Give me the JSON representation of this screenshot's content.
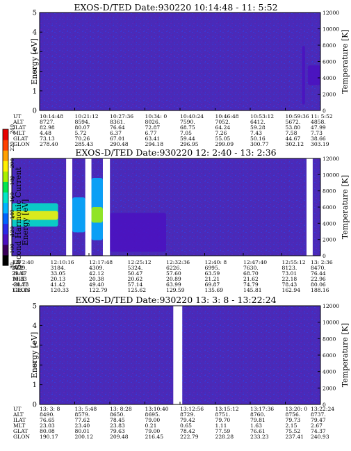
{
  "chart_data": [
    {
      "type": "heatmap",
      "title": "EXOS-D/TED   Date:930220  10:14:48 - 11: 5:52",
      "ylabel": "Energy [eV]",
      "y2label": "Temperature [K]",
      "ylim": [
        0,
        5
      ],
      "yticks": [
        "0",
        "1",
        "2",
        "3",
        "4",
        "5"
      ],
      "y2lim": [
        0,
        12000
      ],
      "y2ticks": [
        "0",
        "2000",
        "4000",
        "6000",
        "8000",
        "10000",
        "12000"
      ],
      "row_labels": [
        "UT",
        "ALT",
        "ILAT",
        "MLT",
        "GLAT",
        "GLON"
      ],
      "columns": [
        [
          "10:14:48",
          "8727.",
          "82.98",
          "4.48",
          "73.13",
          "278.40"
        ],
        [
          "10:21:12",
          "8594.",
          "80.07",
          "5.72",
          "70.26",
          "285.43"
        ],
        [
          "10:27:36",
          "8361.",
          "76.64",
          "6.37",
          "67.01",
          "290.48"
        ],
        [
          "10:34: 0",
          "8026.",
          "72.87",
          "6.77",
          "63.41",
          "294.18"
        ],
        [
          "10:40:24",
          "7590.",
          "68.75",
          "7.05",
          "59.44",
          "296.95"
        ],
        [
          "10:46:48",
          "7052.",
          "64.24",
          "7.26",
          "55.05",
          "299.09"
        ],
        [
          "10:53:12",
          "6412.",
          "59.28",
          "7.43",
          "50.16",
          "300.77"
        ],
        [
          "10:59:36",
          "5672.",
          "53.80",
          "7.58",
          "44.67",
          "302.12"
        ],
        [
          "11: 5:52",
          "4858.",
          "47.99",
          "7.73",
          "38.66",
          "303.19"
        ]
      ],
      "gaps": [],
      "features": [
        {
          "x": [
            0.955,
            1.0
          ],
          "y": [
            1.3,
            2.3
          ],
          "level": 110
        },
        {
          "x": [
            0.935,
            0.945
          ],
          "y": [
            0.3,
            3.3
          ],
          "level": 105
        }
      ]
    },
    {
      "type": "heatmap",
      "title": "EXOS-D/TED   Date:930220  12: 2:40 - 13: 2:36",
      "ylabel": "Energy [eV]",
      "y2label": "Temperature [K]",
      "ylim": [
        0,
        5
      ],
      "yticks": [
        "0",
        "1",
        "2",
        "3",
        "4",
        "5"
      ],
      "y2lim": [
        0,
        12000
      ],
      "y2ticks": [
        "0",
        "2000",
        "4000",
        "6000",
        "8000",
        "10000",
        "12000"
      ],
      "row_labels": [
        "UT",
        "ALT",
        "ILAT",
        "MLT",
        "GLAT",
        "GLON"
      ],
      "columns": [
        [
          "12: 2:40",
          "2029.",
          "29.47",
          "19.83",
          "-20.73",
          "118.13"
        ],
        [
          "12:10:16",
          "3184.",
          "33.05",
          "20.13",
          "41.42",
          "120.33"
        ],
        [
          "12:17:48",
          "4309.",
          "42.12",
          "20.38",
          "49.40",
          "122.79"
        ],
        [
          "12:25:12",
          "5324.",
          "50.47",
          "20.62",
          "57.14",
          "125.62"
        ],
        [
          "12:32:36",
          "6226.",
          "57.60",
          "20.89",
          "63.99",
          "129.59"
        ],
        [
          "12:40: 8",
          "6995.",
          "63.59",
          "21.21",
          "69.87",
          "135.69"
        ],
        [
          "12:47:40",
          "7630.",
          "68.70",
          "21.62",
          "74.79",
          "145.81"
        ],
        [
          "12:55:12",
          "8123.",
          "73.01",
          "22.18",
          "78.43",
          "162.94"
        ],
        [
          "13: 2:36",
          "8470.",
          "76.44",
          "22.96",
          "80.06",
          "188.16"
        ]
      ],
      "gaps": [
        [
          0.176,
          0.196
        ],
        [
          0.238,
          0.258
        ],
        [
          0.295,
          0.318
        ],
        [
          0.955,
          0.975
        ]
      ],
      "features": [
        {
          "x": [
            0.0,
            0.15
          ],
          "y": [
            1.5,
            2.7
          ],
          "level": 160
        },
        {
          "x": [
            0.0,
            0.15
          ],
          "y": [
            1.85,
            2.3
          ],
          "level": 195
        },
        {
          "x": [
            0.196,
            0.238
          ],
          "y": [
            1.2,
            3.0
          ],
          "level": 140
        },
        {
          "x": [
            0.258,
            0.295
          ],
          "y": [
            0.8,
            4.0
          ],
          "level": 150
        },
        {
          "x": [
            0.258,
            0.295
          ],
          "y": [
            1.7,
            2.5
          ],
          "level": 185
        },
        {
          "x": [
            0.318,
            0.5
          ],
          "y": [
            0.2,
            2.2
          ],
          "level": 110
        }
      ]
    },
    {
      "type": "heatmap",
      "title": "EXOS-D/TED   Date:930220  13: 3: 8 - 13:22:24",
      "ylabel": "Energy [eV]",
      "y2label": "Temperature [K]",
      "ylim": [
        0,
        5
      ],
      "yticks": [
        "0",
        "1",
        "2",
        "3",
        "4",
        "5"
      ],
      "y2lim": [
        0,
        12000
      ],
      "y2ticks": [
        "0",
        "2000",
        "4000",
        "6000",
        "8000",
        "10000",
        "12000"
      ],
      "row_labels": [
        "UT",
        "ALT",
        "ILAT",
        "MLT",
        "GLAT",
        "GLON"
      ],
      "columns": [
        [
          "13: 3: 8",
          "8490.",
          "76.65",
          "23.03",
          "80.08",
          "190.17"
        ],
        [
          "13: 5:48",
          "8579.",
          "77.62",
          "23.40",
          "80.01",
          "200.12"
        ],
        [
          "13: 8:28",
          "8650.",
          "78.45",
          "23.83",
          "79.63",
          "209.48"
        ],
        [
          "13:10:40",
          "8695.",
          "79.00",
          "0.21",
          "79.00",
          "216.45"
        ],
        [
          "13:12:56",
          "8729.",
          "79.42",
          "0.65",
          "78.42",
          "222.79"
        ],
        [
          "13:15:12",
          "8751.",
          "79.70",
          "1.11",
          "77.59",
          "228.28"
        ],
        [
          "13:17:36",
          "8760.",
          "79.81",
          "1.63",
          "76.61",
          "233.23"
        ],
        [
          "13:20: 0",
          "8756.",
          "79.73",
          "2.15",
          "75.52",
          "237.41"
        ],
        [
          "13:22:24",
          "8737.",
          "79.47",
          "2.67",
          "74.37",
          "240.93"
        ]
      ],
      "gaps": [
        [
          0.476,
          0.508
        ]
      ],
      "features": []
    }
  ],
  "colorbar": {
    "label": "Second Harmonic Current",
    "ticks": [
      "80",
      "100",
      "120",
      "140",
      "160",
      "180",
      "200",
      "220",
      "240"
    ],
    "min": 80,
    "max": 240,
    "colors": [
      "#000000",
      "#3a005a",
      "#4b10c0",
      "#2a2ae8",
      "#0064ff",
      "#00b4ff",
      "#00e6c8",
      "#00e650",
      "#a8f000",
      "#fff000",
      "#ffa000",
      "#ff4000",
      "#e80000"
    ]
  }
}
